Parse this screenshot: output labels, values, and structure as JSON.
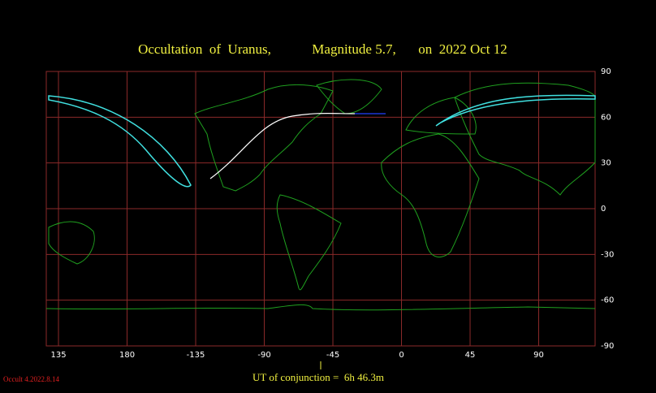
{
  "header": {
    "title": "Occultation  of  Uranus,",
    "magnitude": "Magnitude 5.7,",
    "date": "on  2022 Oct 12"
  },
  "map": {
    "lon_ticks": [
      135,
      180,
      -135,
      -90,
      -45,
      0,
      45,
      90
    ],
    "lat_ticks": [
      90,
      60,
      30,
      0,
      -30,
      -60,
      -90
    ]
  },
  "footer": {
    "conjunction": "UT of conjunction =  6h 46.3m",
    "version": "Occult 4.2022.8.14"
  }
}
